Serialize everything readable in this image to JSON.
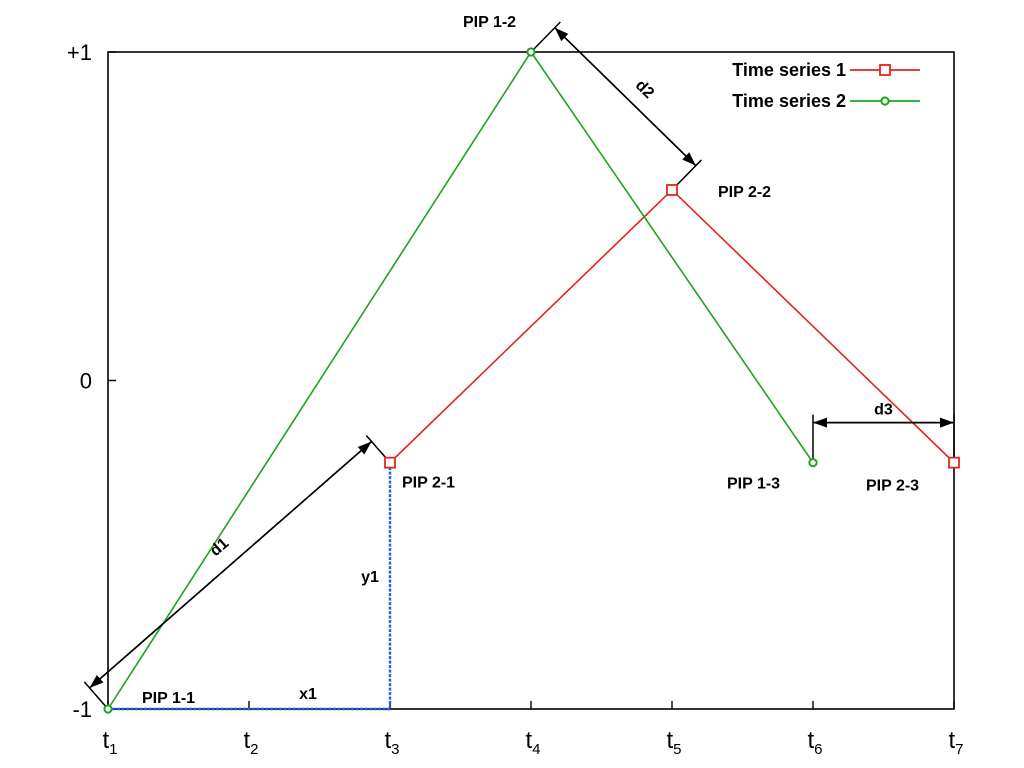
{
  "chart_data": {
    "type": "line",
    "x_ticks": [
      {
        "base": "t",
        "sub": "1"
      },
      {
        "base": "t",
        "sub": "2"
      },
      {
        "base": "t",
        "sub": "3"
      },
      {
        "base": "t",
        "sub": "4"
      },
      {
        "base": "t",
        "sub": "5"
      },
      {
        "base": "t",
        "sub": "6"
      },
      {
        "base": "t",
        "sub": "7"
      }
    ],
    "xlim": [
      1,
      7
    ],
    "y_ticks": [
      {
        "value": 1,
        "label": "+1"
      },
      {
        "value": 0,
        "label": "0"
      },
      {
        "value": -1,
        "label": "-1"
      }
    ],
    "ylim": [
      -1,
      1
    ],
    "grid": false,
    "legend_position": "top-right",
    "series": [
      {
        "name": "Time series 1",
        "color": "#e8231e",
        "marker": "square",
        "points": [
          {
            "x": 3,
            "y": -0.25
          },
          {
            "x": 5,
            "y": 0.58
          },
          {
            "x": 7,
            "y": -0.25
          }
        ]
      },
      {
        "name": "Time series 2",
        "color": "#1fa31f",
        "marker": "circle",
        "points": [
          {
            "x": 1,
            "y": -1
          },
          {
            "x": 4,
            "y": 1
          },
          {
            "x": 6,
            "y": -0.25
          }
        ]
      }
    ],
    "annotations": {
      "pip_labels": [
        "PIP 1-1",
        "PIP 1-2",
        "PIP 1-3",
        "PIP 2-1",
        "PIP 2-2",
        "PIP 2-3"
      ],
      "distance_labels": [
        "d1",
        "d2",
        "d3"
      ],
      "projection_labels": [
        "x1",
        "y1"
      ],
      "projection_color": "#1f5fd6"
    }
  }
}
